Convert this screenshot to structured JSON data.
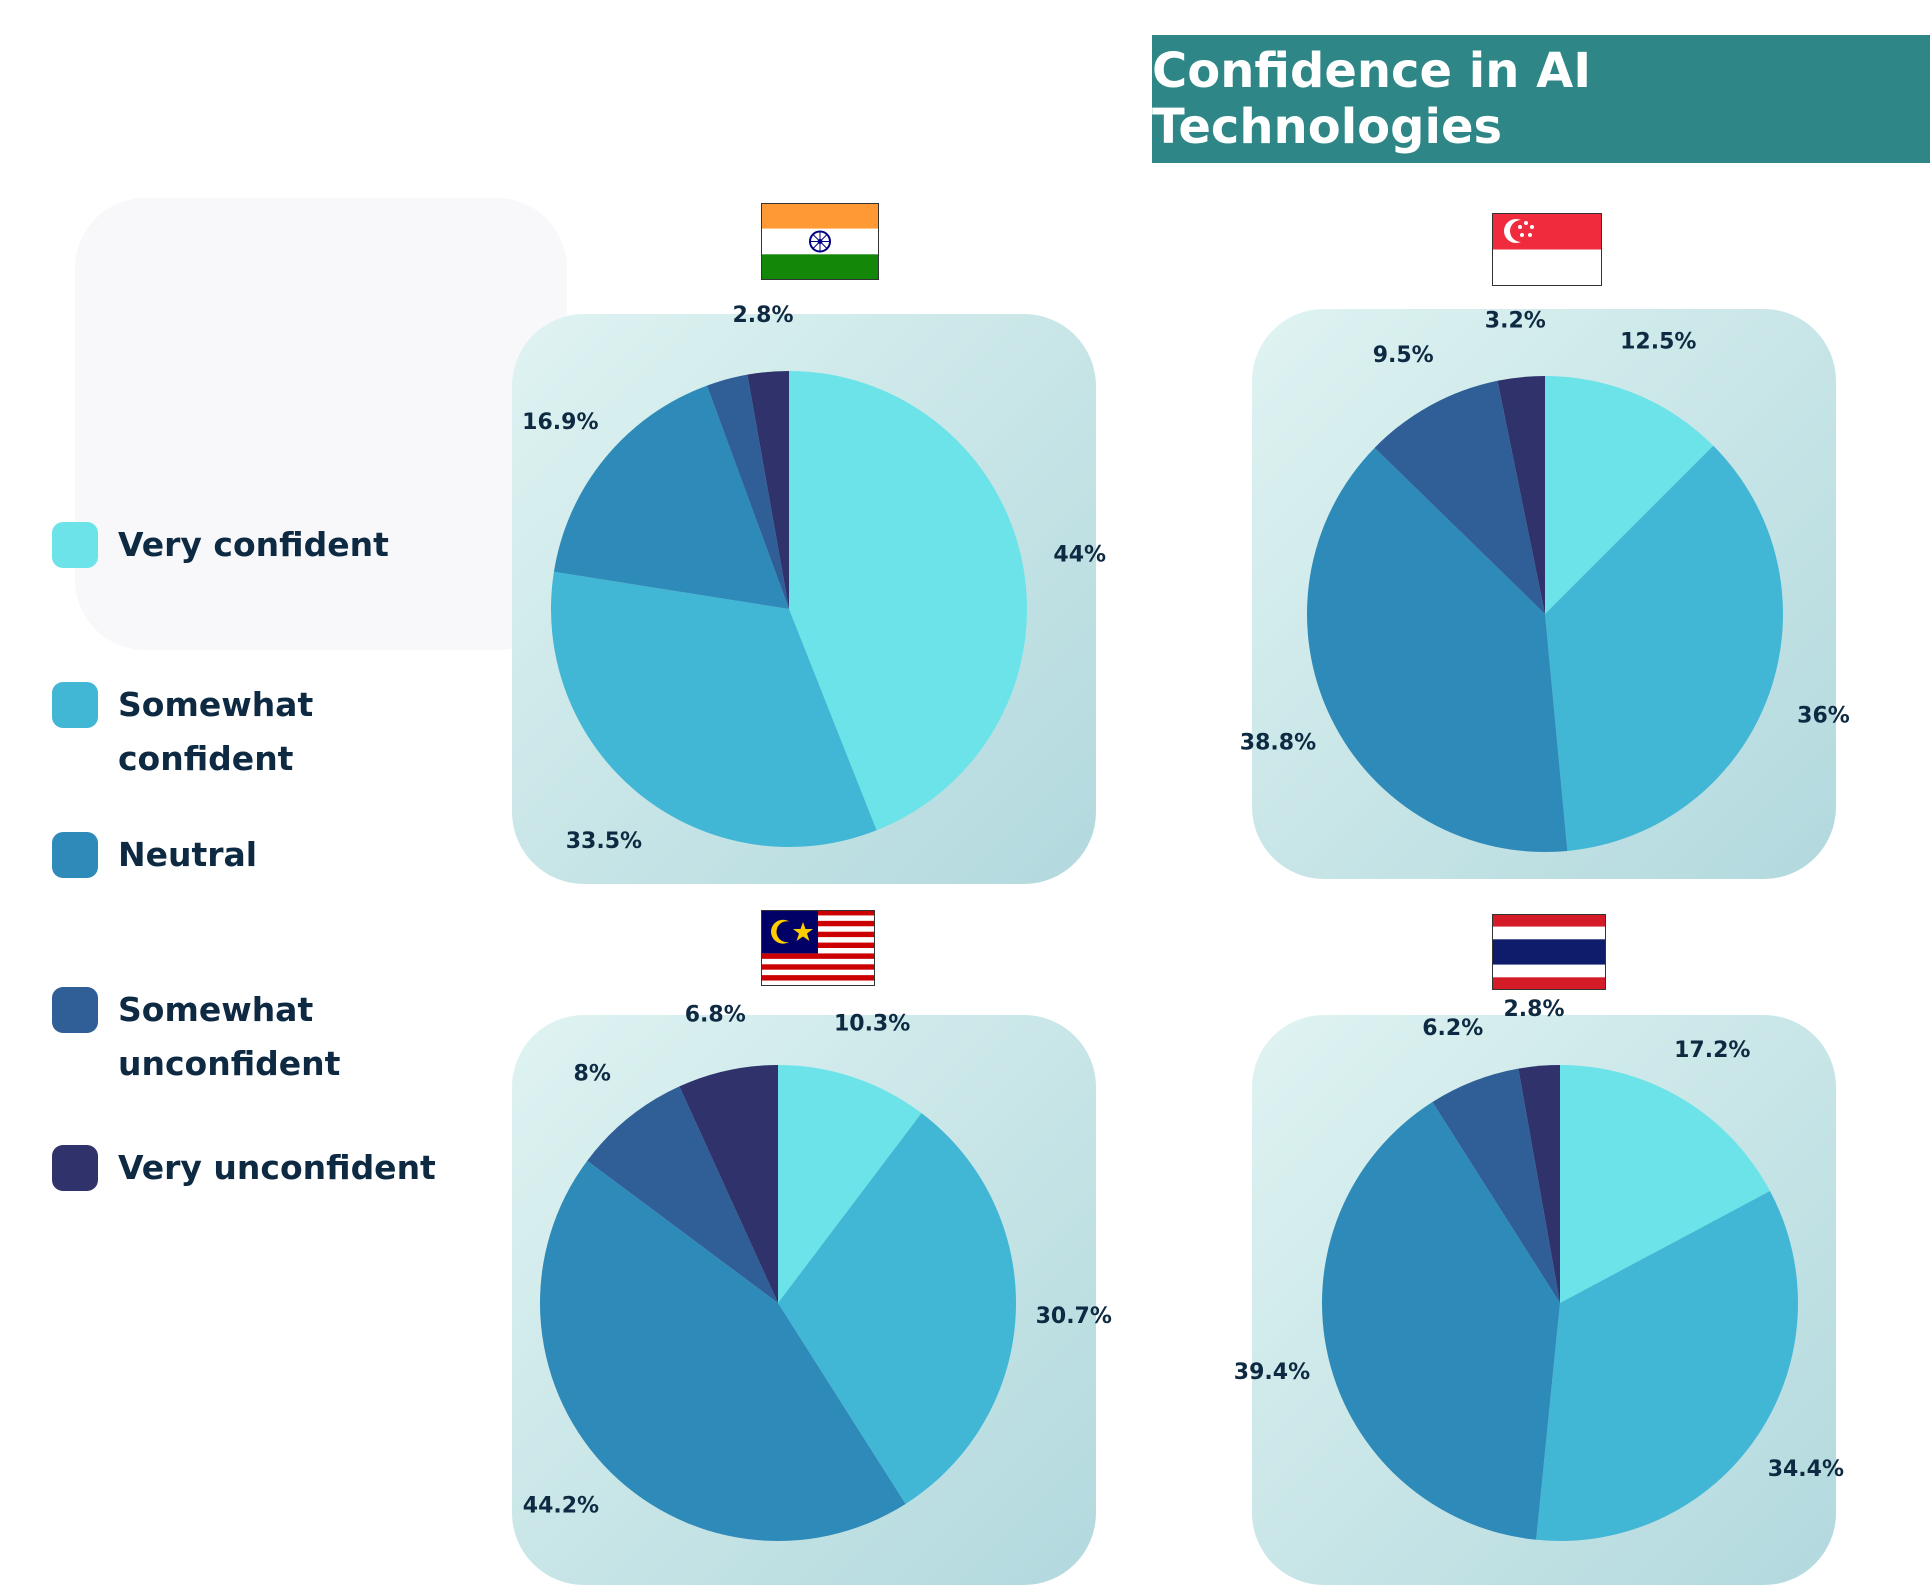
{
  "title": "Confidence in AI Technologies",
  "legend": [
    {
      "key": "very_confident",
      "label": "Very confident",
      "color": "#6be3e8"
    },
    {
      "key": "somewhat_confident",
      "label": "Somewhat confident",
      "color": "#42b6d5"
    },
    {
      "key": "neutral",
      "label": "Neutral",
      "color": "#2e8ab8"
    },
    {
      "key": "somewhat_unconfident",
      "label": "Somewhat unconfident",
      "color": "#2f5f96"
    },
    {
      "key": "very_unconfident",
      "label": "Very unconfident",
      "color": "#30336b"
    }
  ],
  "chart_data": [
    {
      "type": "pie",
      "country": "India",
      "flag": "india-flag",
      "categories": [
        "Very confident",
        "Somewhat confident",
        "Neutral",
        "Somewhat unconfident",
        "Very unconfident"
      ],
      "values": [
        44,
        33.5,
        16.9,
        2.8,
        2.8
      ],
      "labels": [
        "44%",
        "33.5%",
        "16.9%",
        "",
        "2.8%"
      ]
    },
    {
      "type": "pie",
      "country": "Singapore",
      "flag": "singapore-flag",
      "categories": [
        "Very confident",
        "Somewhat confident",
        "Neutral",
        "Somewhat unconfident",
        "Very unconfident"
      ],
      "values": [
        12.5,
        36,
        38.8,
        9.5,
        3.2
      ],
      "labels": [
        "12.5%",
        "36%",
        "38.8%",
        "9.5%",
        "3.2%"
      ]
    },
    {
      "type": "pie",
      "country": "Malaysia",
      "flag": "malaysia-flag",
      "categories": [
        "Very confident",
        "Somewhat confident",
        "Neutral",
        "Somewhat unconfident",
        "Very unconfident"
      ],
      "values": [
        10.3,
        30.7,
        44.2,
        8,
        6.8
      ],
      "labels": [
        "10.3%",
        "30.7%",
        "44.2%",
        "8%",
        "6.8%"
      ]
    },
    {
      "type": "pie",
      "country": "Thailand",
      "flag": "thailand-flag",
      "categories": [
        "Very confident",
        "Somewhat confident",
        "Neutral",
        "Somewhat unconfident",
        "Very unconfident"
      ],
      "values": [
        17.2,
        34.4,
        39.4,
        6.2,
        2.8
      ],
      "labels": [
        "17.2%",
        "34.4%",
        "39.4%",
        "6.2%",
        "2.8%"
      ]
    }
  ]
}
